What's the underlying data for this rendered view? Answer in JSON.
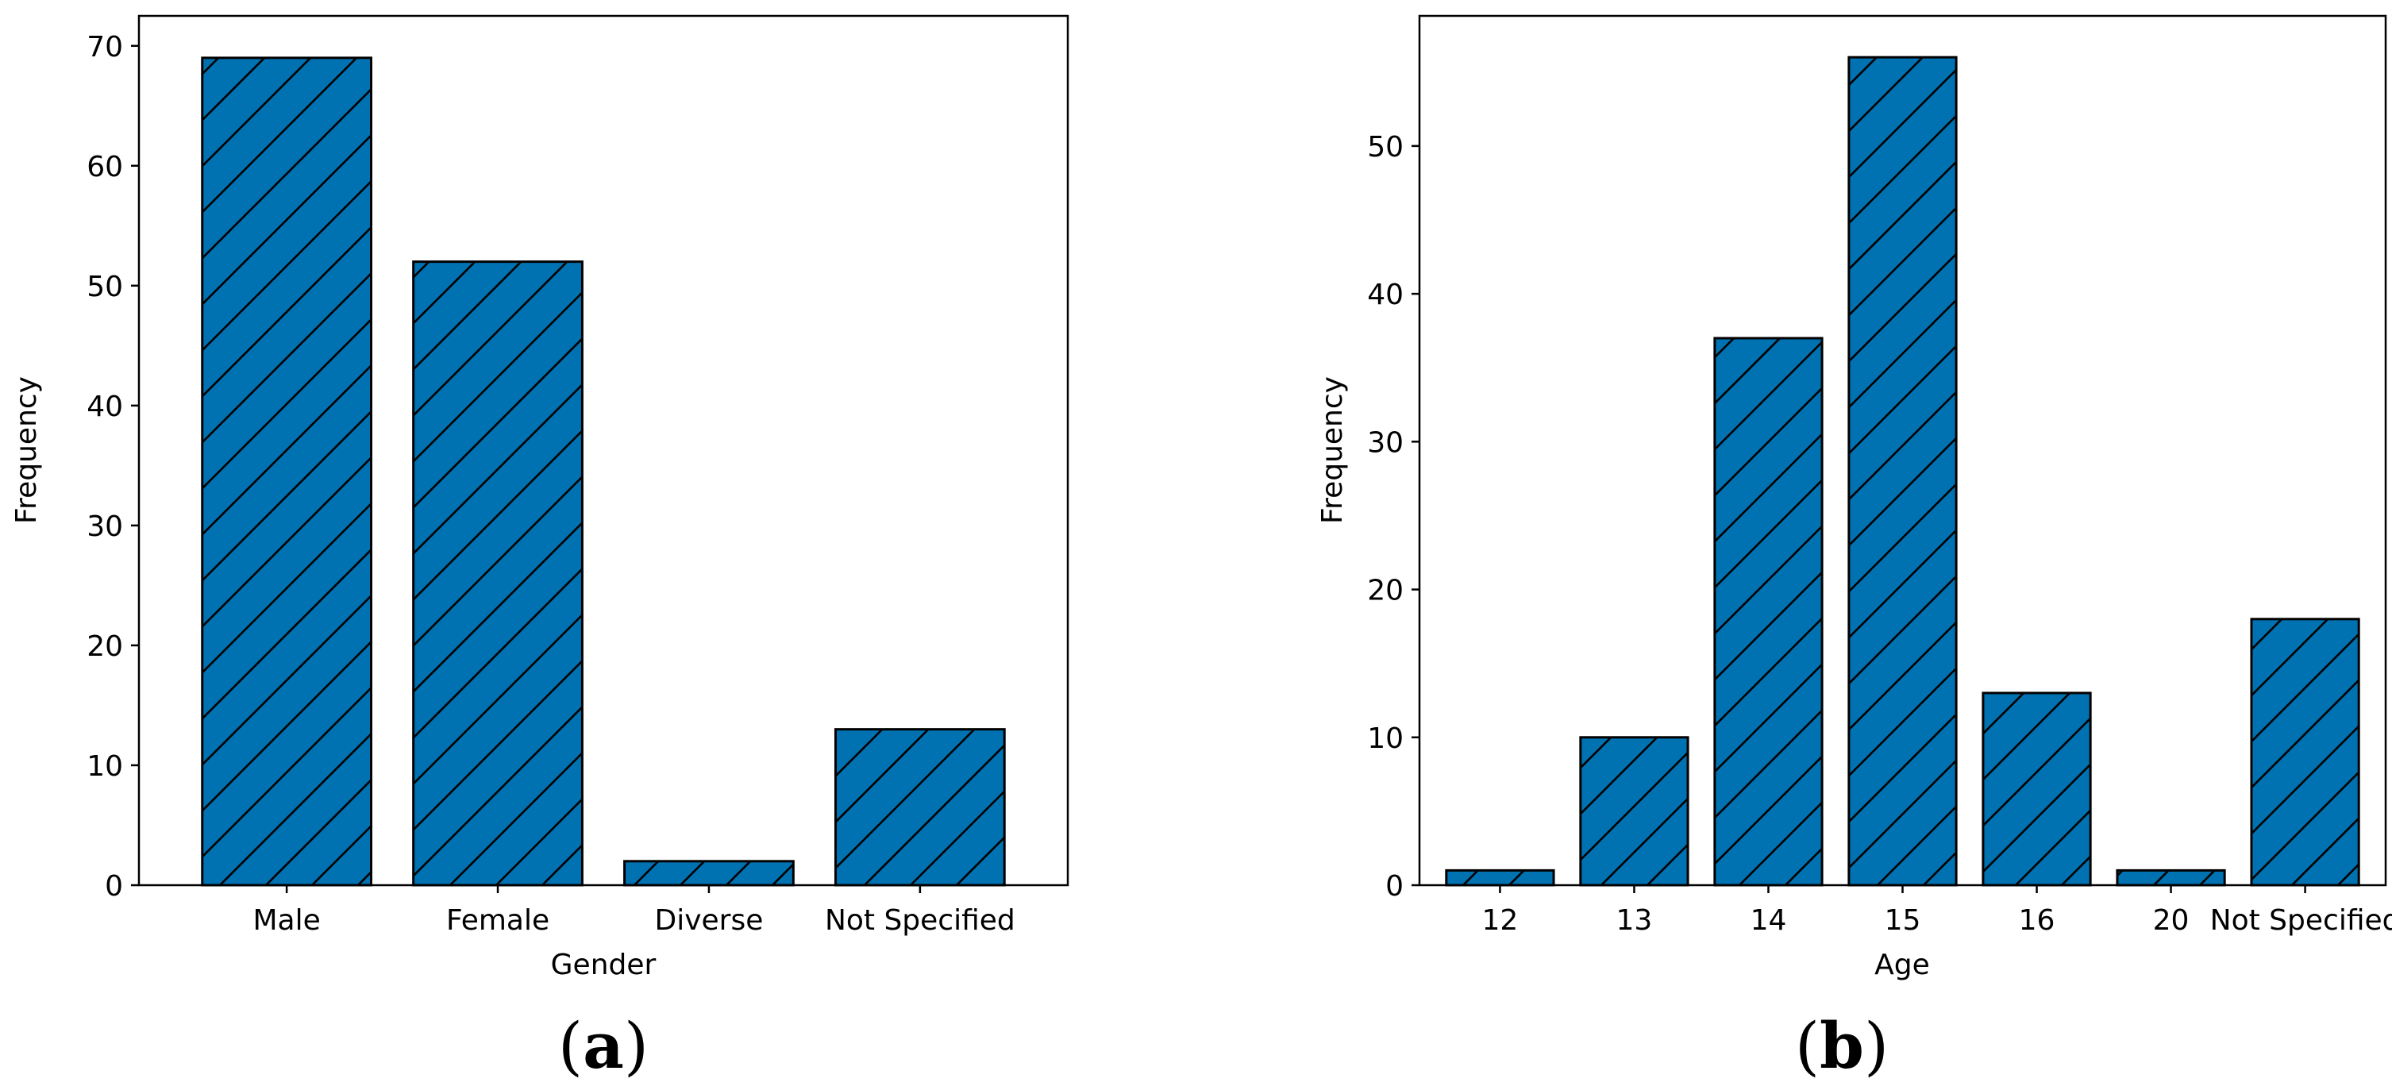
{
  "colors": {
    "bar_fill": "#0072b2",
    "bar_edge": "#000000",
    "axis": "#000000",
    "background": "#ffffff"
  },
  "chart_data": [
    {
      "type": "bar",
      "panel_label": "a",
      "categories": [
        "Male",
        "Female",
        "Diverse",
        "Not Specified"
      ],
      "values": [
        69,
        52,
        2,
        13
      ],
      "title": "",
      "xlabel": "Gender",
      "ylabel": "Frequency",
      "ylim": [
        0,
        72.5
      ],
      "yticks": [
        0,
        10,
        20,
        30,
        40,
        50,
        60,
        70
      ],
      "grid": false,
      "legend": "none",
      "hatch": "diagonal"
    },
    {
      "type": "bar",
      "panel_label": "b",
      "categories": [
        "12",
        "13",
        "14",
        "15",
        "16",
        "20",
        "Not Specified"
      ],
      "values": [
        1,
        10,
        37,
        56,
        13,
        1,
        18
      ],
      "title": "",
      "xlabel": "Age",
      "ylabel": "Frequency",
      "ylim": [
        0,
        58.8
      ],
      "yticks": [
        0,
        10,
        20,
        30,
        40,
        50
      ],
      "grid": false,
      "legend": "none",
      "hatch": "diagonal"
    }
  ]
}
